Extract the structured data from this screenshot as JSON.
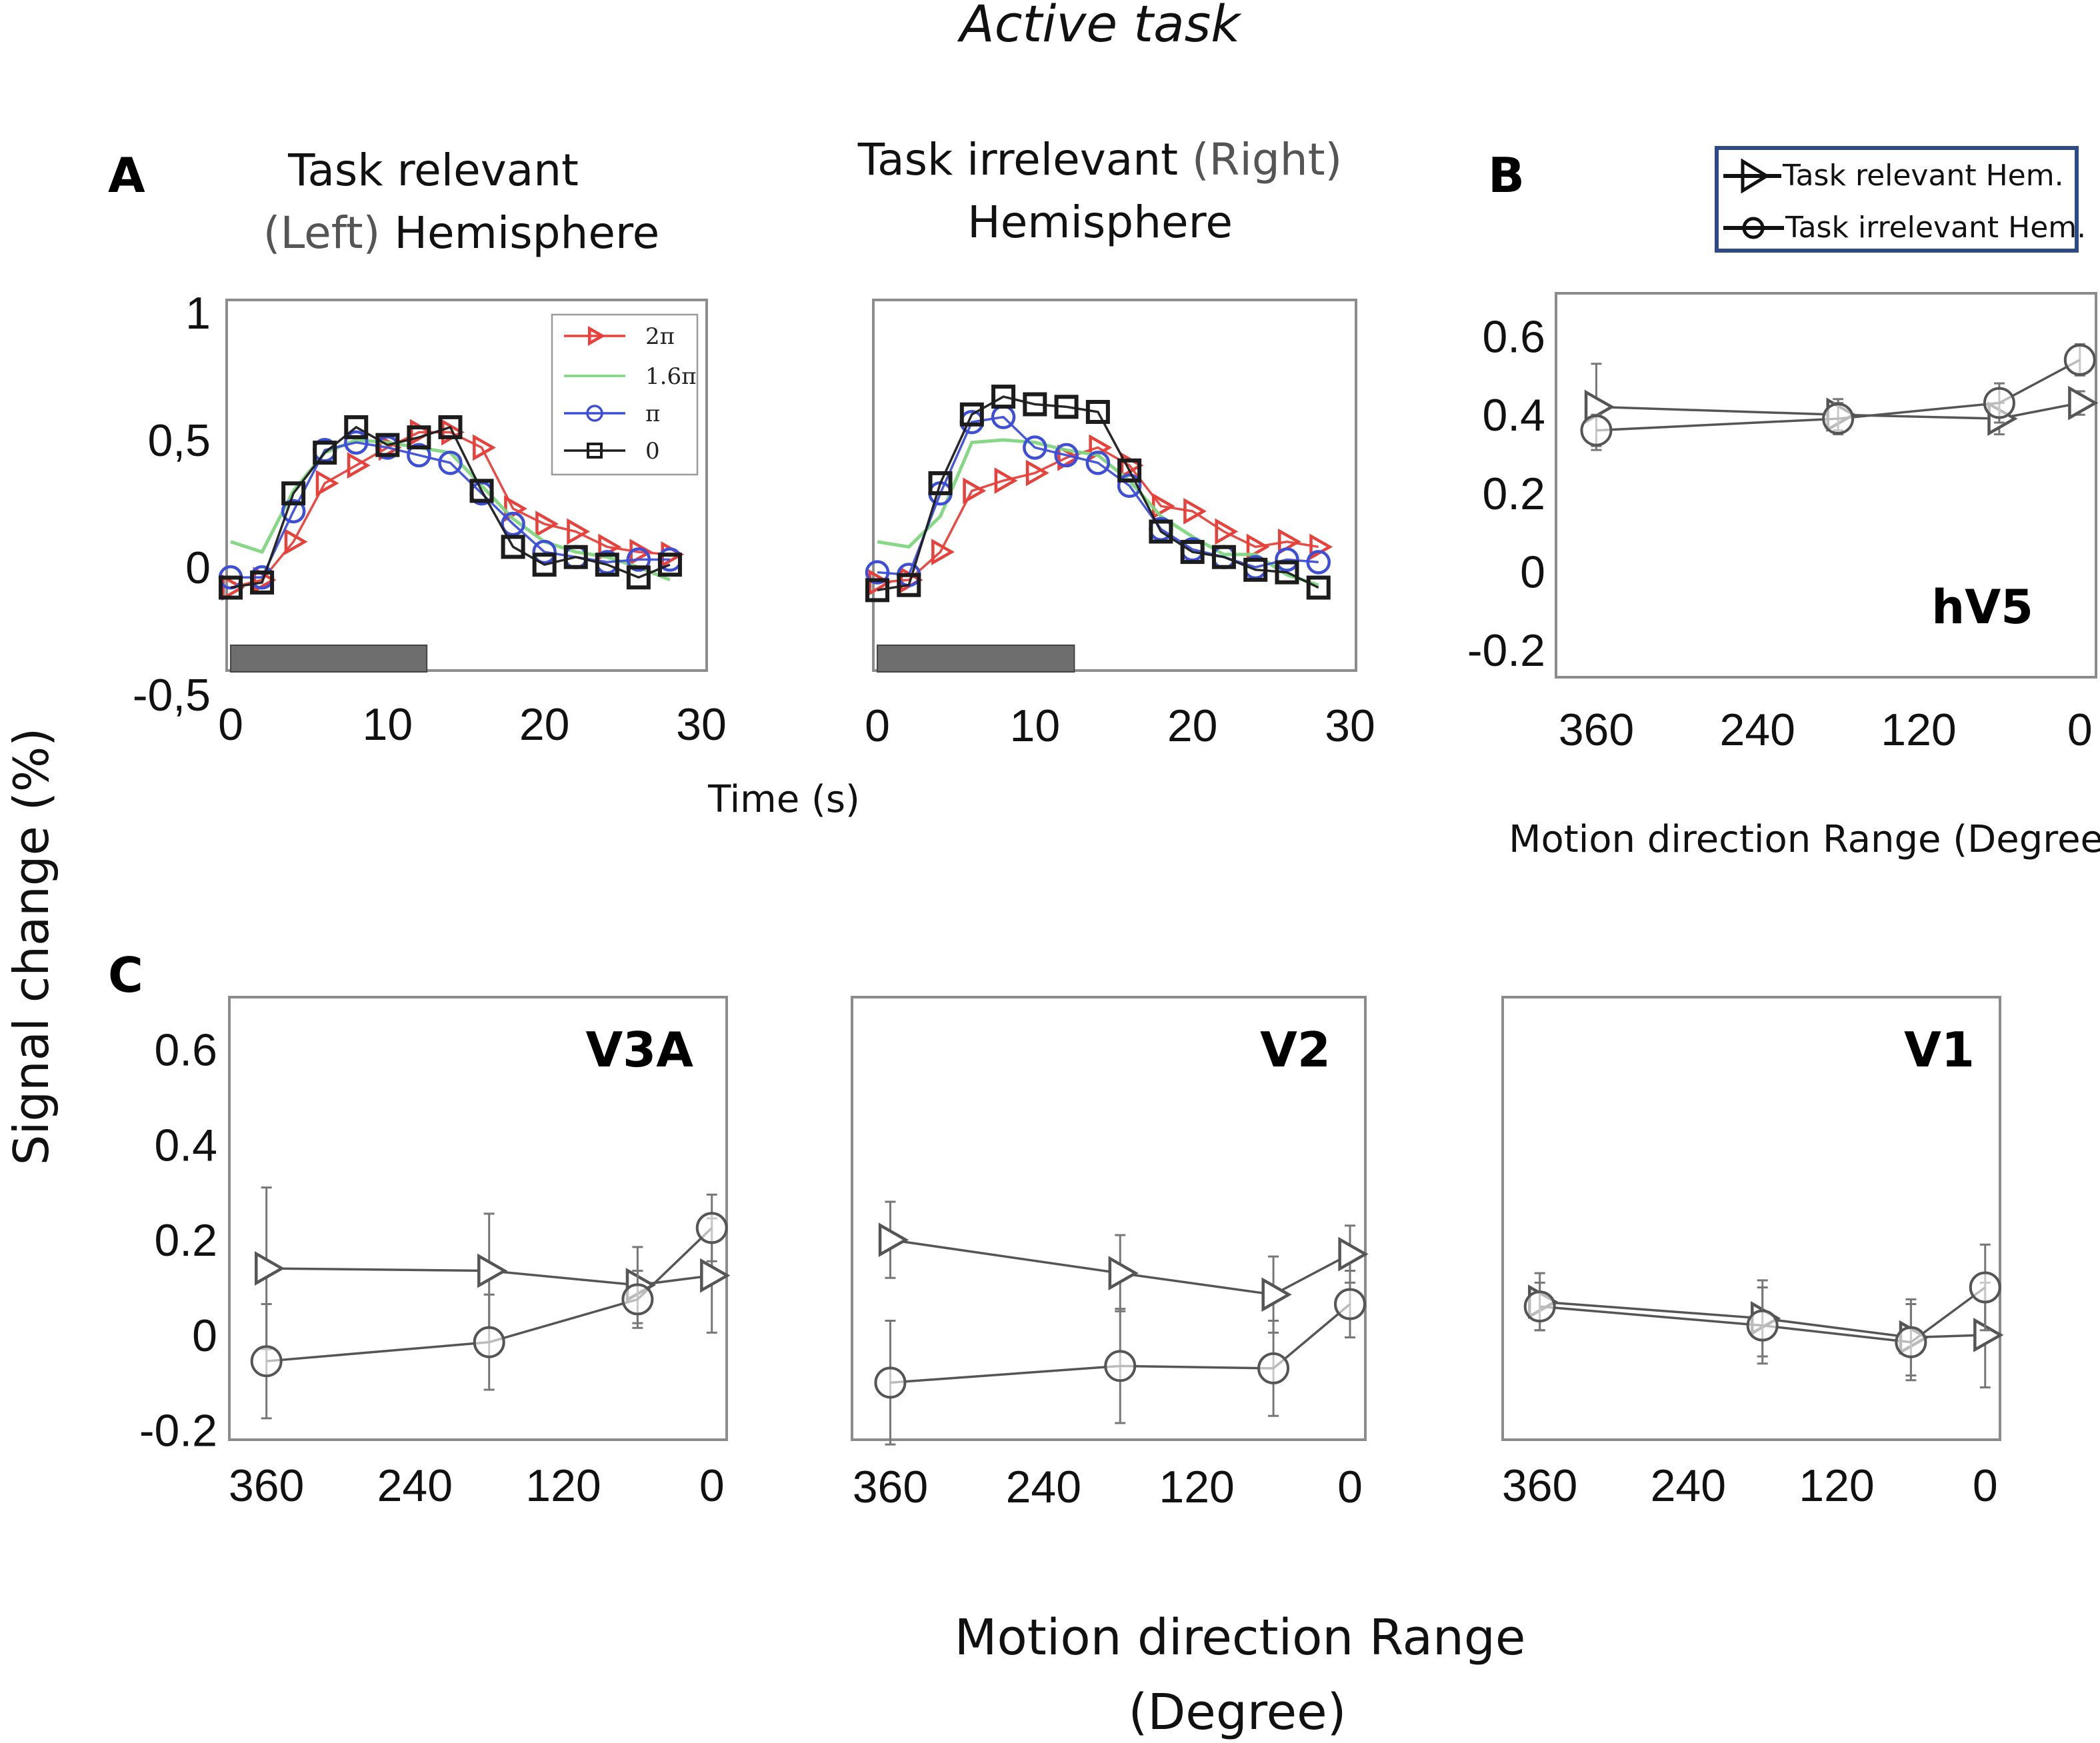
{
  "figure": {
    "title": "Active task",
    "shared_ylabel": "Signal change (%)",
    "time_xlabel": "Time (s)",
    "b_xlabel": "Motion direction Range (Degree)",
    "c_xlabel_line1": "Motion direction Range",
    "c_xlabel_line2": "(Degree)"
  },
  "panel_a": {
    "label": "A",
    "left_title_1": "Task relevant",
    "left_title_2a": "(Left)",
    "left_title_2b": " Hemisphere",
    "right_title_1a": "Task irrelevant",
    "right_title_1b": " (Right)",
    "right_title_2": "Hemisphere"
  },
  "panel_b": {
    "label": "B"
  },
  "panel_c": {
    "label": "C"
  },
  "legend_ab": {
    "relevant": "Task relevant Hem.",
    "irrelevant": "Task irrelevant Hem."
  },
  "colors": {
    "red": "#e8403a",
    "green": "#7fd67f",
    "blue": "#3d4fd8",
    "black": "#1c1c1c",
    "gray_line": "#555555",
    "stim_bar": "#6e6e6e",
    "legend_border": "#2d4a87"
  },
  "chart_data": [
    {
      "id": "timecourse-left",
      "type": "line",
      "title": "Task relevant (Left) Hemisphere",
      "xlabel": "Time (s)",
      "ylabel": "Signal change (%)",
      "xlim": [
        0,
        30
      ],
      "ylim": [
        -0.5,
        1
      ],
      "xticks": [
        "0",
        "10",
        "20",
        "30"
      ],
      "xtick_values": [
        0,
        10,
        20,
        30
      ],
      "yticks": [
        "1",
        "0,5",
        "0",
        "-0,5"
      ],
      "ytick_values": [
        1,
        0.5,
        0,
        -0.5
      ],
      "stimulus_bar": [
        0,
        12.5
      ],
      "x": [
        0,
        2,
        4,
        6,
        8,
        10,
        12,
        14,
        16,
        18,
        20,
        22,
        24,
        26,
        28
      ],
      "legend": [
        "2π",
        "1.6π",
        "π",
        "0"
      ],
      "series": [
        {
          "name": "2π",
          "marker": "triangle",
          "color": "red",
          "values": [
            -0.08,
            -0.05,
            0.1,
            0.33,
            0.4,
            0.47,
            0.53,
            0.53,
            0.47,
            0.23,
            0.17,
            0.14,
            0.08,
            0.06,
            0.05
          ]
        },
        {
          "name": "1.6π",
          "marker": "none",
          "color": "green",
          "values": [
            0.1,
            0.06,
            0.3,
            0.45,
            0.5,
            0.49,
            0.47,
            0.45,
            0.32,
            0.19,
            0.1,
            0.06,
            0.04,
            0.0,
            -0.05
          ]
        },
        {
          "name": "π",
          "marker": "circle",
          "color": "blue",
          "values": [
            -0.04,
            -0.04,
            0.22,
            0.46,
            0.49,
            0.47,
            0.44,
            0.41,
            0.29,
            0.17,
            0.06,
            0.04,
            0.02,
            0.03,
            0.03
          ]
        },
        {
          "name": "0",
          "marker": "square",
          "color": "black",
          "values": [
            -0.08,
            -0.06,
            0.29,
            0.45,
            0.55,
            0.48,
            0.51,
            0.55,
            0.3,
            0.08,
            0.01,
            0.04,
            0.01,
            -0.04,
            0.01
          ]
        }
      ]
    },
    {
      "id": "timecourse-right",
      "type": "line",
      "title": "Task irrelevant (Right) Hemisphere",
      "xlabel": "Time (s)",
      "xlim": [
        0,
        30
      ],
      "ylim": [
        -0.5,
        1
      ],
      "xticks": [
        "0",
        "10",
        "20",
        "30"
      ],
      "xtick_values": [
        0,
        10,
        20,
        30
      ],
      "stimulus_bar": [
        0,
        12.5
      ],
      "x": [
        0,
        2,
        4,
        6,
        8,
        10,
        12,
        14,
        16,
        18,
        20,
        22,
        24,
        26,
        28
      ],
      "series": [
        {
          "name": "2π",
          "marker": "triangle",
          "color": "red",
          "values": [
            -0.06,
            -0.05,
            0.06,
            0.3,
            0.34,
            0.37,
            0.43,
            0.47,
            0.4,
            0.24,
            0.22,
            0.14,
            0.08,
            0.1,
            0.08
          ]
        },
        {
          "name": "1.6π",
          "marker": "none",
          "color": "green",
          "values": [
            0.1,
            0.08,
            0.2,
            0.49,
            0.5,
            0.49,
            0.46,
            0.44,
            0.34,
            0.2,
            0.12,
            0.05,
            0.05,
            -0.03,
            -0.07
          ]
        },
        {
          "name": "π",
          "marker": "circle",
          "color": "blue",
          "values": [
            -0.02,
            -0.03,
            0.29,
            0.57,
            0.59,
            0.47,
            0.44,
            0.41,
            0.32,
            0.15,
            0.07,
            0.04,
            0.0,
            0.03,
            0.02
          ]
        },
        {
          "name": "0",
          "marker": "square",
          "color": "black",
          "values": [
            -0.09,
            -0.07,
            0.33,
            0.6,
            0.67,
            0.64,
            0.63,
            0.61,
            0.38,
            0.14,
            0.06,
            0.04,
            -0.01,
            -0.02,
            -0.08
          ]
        }
      ]
    },
    {
      "id": "hv5",
      "type": "line",
      "title": "hV5",
      "xlabel": "Motion direction Range (Degree)",
      "x": [
        360,
        180,
        60,
        0
      ],
      "xlim": [
        390,
        -12
      ],
      "ylim": [
        -0.27,
        0.71
      ],
      "xticks": [
        "360",
        "240",
        "120",
        "0"
      ],
      "xtick_values": [
        360,
        240,
        120,
        0
      ],
      "yticks": [
        "0.6",
        "0.4",
        "0.2",
        "0",
        "-0.2"
      ],
      "ytick_values": [
        0.6,
        0.4,
        0.2,
        0,
        -0.2
      ],
      "series": [
        {
          "name": "Task relevant Hem.",
          "marker": "triangle",
          "values": [
            0.42,
            0.4,
            0.39,
            0.43
          ],
          "errors": [
            0.11,
            0.04,
            0.04,
            0.03
          ]
        },
        {
          "name": "Task irrelevant Hem.",
          "marker": "circle",
          "values": [
            0.36,
            0.39,
            0.43,
            0.54
          ],
          "errors": [
            0.04,
            0.04,
            0.05,
            0.04
          ]
        }
      ]
    },
    {
      "id": "v3a",
      "type": "line",
      "title": "V3A",
      "x": [
        360,
        180,
        60,
        0
      ],
      "xlim": [
        390,
        -12
      ],
      "ylim": [
        -0.22,
        0.71
      ],
      "xticks": [
        "360",
        "240",
        "120",
        "0"
      ],
      "xtick_values": [
        360,
        240,
        120,
        0
      ],
      "yticks": [
        "0.6",
        "0.4",
        "0.2",
        "0",
        "-0.2"
      ],
      "ytick_values": [
        0.6,
        0.4,
        0.2,
        0,
        -0.2
      ],
      "series": [
        {
          "name": "Task relevant Hem.",
          "marker": "triangle",
          "values": [
            0.14,
            0.135,
            0.105,
            0.125
          ],
          "errors": [
            0.17,
            0.12,
            0.08,
            0.12
          ]
        },
        {
          "name": "Task irrelevant Hem.",
          "marker": "circle",
          "values": [
            -0.055,
            -0.015,
            0.075,
            0.225
          ],
          "errors": [
            0.12,
            0.1,
            0.06,
            0.07
          ]
        }
      ]
    },
    {
      "id": "v2",
      "type": "line",
      "title": "V2",
      "x": [
        360,
        180,
        60,
        0
      ],
      "xlim": [
        390,
        -12
      ],
      "ylim": [
        -0.22,
        0.71
      ],
      "xticks": [
        "360",
        "240",
        "120",
        "0"
      ],
      "xtick_values": [
        360,
        240,
        120,
        0
      ],
      "series": [
        {
          "name": "Task relevant Hem.",
          "marker": "triangle",
          "values": [
            0.2,
            0.13,
            0.085,
            0.17
          ],
          "errors": [
            0.08,
            0.08,
            0.08,
            0.06
          ]
        },
        {
          "name": "Task irrelevant Hem.",
          "marker": "circle",
          "values": [
            -0.1,
            -0.065,
            -0.07,
            0.065
          ],
          "errors": [
            0.13,
            0.12,
            0.1,
            0.07
          ]
        }
      ]
    },
    {
      "id": "v1",
      "type": "line",
      "title": "V1",
      "x": [
        360,
        180,
        60,
        0
      ],
      "xlim": [
        390,
        -12
      ],
      "ylim": [
        -0.22,
        0.71
      ],
      "xticks": [
        "360",
        "240",
        "120",
        "0"
      ],
      "xtick_values": [
        360,
        240,
        120,
        0
      ],
      "series": [
        {
          "name": "Task relevant Hem.",
          "marker": "triangle",
          "values": [
            0.07,
            0.035,
            -0.005,
            0.0
          ],
          "errors": [
            0.06,
            0.08,
            0.08,
            0.11
          ]
        },
        {
          "name": "Task irrelevant Hem.",
          "marker": "circle",
          "values": [
            0.06,
            0.02,
            -0.015,
            0.1
          ],
          "errors": [
            0.05,
            0.08,
            0.08,
            0.09
          ]
        }
      ]
    }
  ]
}
